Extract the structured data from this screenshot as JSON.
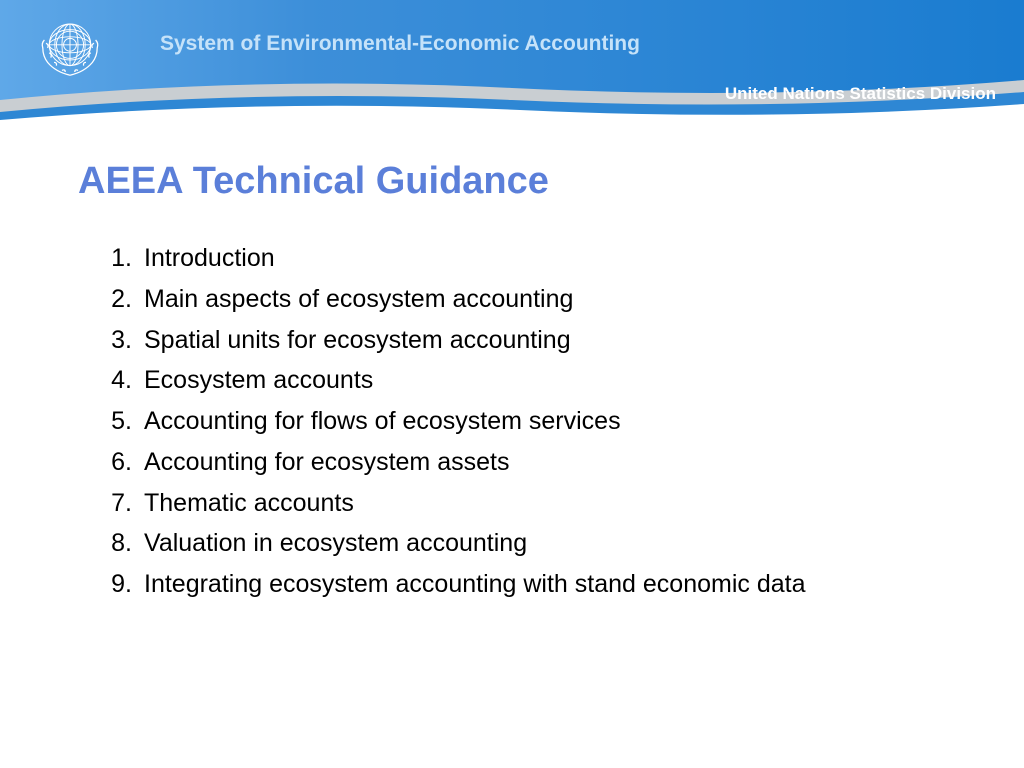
{
  "header": {
    "title": "System of Environmental-Economic Accounting",
    "subtitle": "United Nations Statistics Division",
    "gradient_start": "#5fa8e8",
    "gradient_end": "#1a7cd0",
    "title_color": "#c5e2f9",
    "subtitle_color": "#ffffff",
    "curve_gray": "#c9ced2",
    "curve_blue": "#2e87d4"
  },
  "slide": {
    "title": "AEEA Technical Guidance",
    "title_color": "#5b7fd9",
    "items": [
      "Introduction",
      "Main aspects of ecosystem accounting",
      "Spatial units for ecosystem accounting",
      "Ecosystem accounts",
      "Accounting for flows of ecosystem services",
      "Accounting for ecosystem assets",
      "Thematic accounts",
      "Valuation in ecosystem accounting",
      "Integrating ecosystem accounting with stand economic data"
    ],
    "item_color": "#000000",
    "item_fontsize": 25
  },
  "emblem": {
    "stroke": "#ffffff",
    "fill": "none"
  }
}
